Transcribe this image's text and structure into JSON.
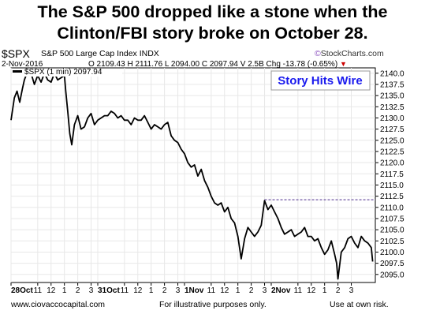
{
  "header": {
    "title_line1": "The S&P 500 dropped like a stone when the",
    "title_line2": "Clinton/FBI story broke on October 28.",
    "ticker": "$SPX",
    "instrument": "S&P 500 Large Cap Index INDX",
    "credit_icon": "©",
    "credit": "StockCharts.com",
    "date": "2-Nov-2016",
    "ohlc": "O 2109.43  H 2111.76  L 2094.00  C 2097.94  V 2.5B  Chg -13.78 (-0.65%)",
    "chg_arrow": "▼"
  },
  "footer": {
    "site": "www.ciovaccocapital.com",
    "disclaimer": "For illustrative purposes only.",
    "risk": "Use at own risk."
  },
  "colors": {
    "price_line": "#000000",
    "annotation_text": "#1a1aee",
    "annotation_border": "#999999",
    "reference_line": "#4b2a8a",
    "gridline": "#e8e8e8",
    "down": "#cc0000"
  },
  "chart_data": {
    "type": "line",
    "title": "The S&P 500 dropped like a stone when the Clinton/FBI story broke on October 28.",
    "legend": [
      "$SPX (1 min) 2097.94"
    ],
    "annotations": [
      {
        "text": "Story Hits Wire"
      }
    ],
    "reference_lines": [
      {
        "y": 2111.7,
        "style": "dashed",
        "x_start": "Nov 1 15:15"
      }
    ],
    "yticks": [
      2095.0,
      2097.5,
      2100.0,
      2102.5,
      2105.0,
      2107.5,
      2110.0,
      2112.5,
      2115.0,
      2117.5,
      2120.0,
      2122.5,
      2125.0,
      2127.5,
      2130.0,
      2132.5,
      2135.0,
      2137.5,
      2140.0
    ],
    "ylim": [
      2093.2,
      2141.2
    ],
    "xlim": [
      0,
      27.3
    ],
    "xlabel": "",
    "ylabel": "",
    "grid": true,
    "xticks": [
      {
        "x": 0,
        "label": "28Oct"
      },
      {
        "x": 2,
        "label": "11"
      },
      {
        "x": 3,
        "label": "12"
      },
      {
        "x": 4,
        "label": "1"
      },
      {
        "x": 5,
        "label": "2"
      },
      {
        "x": 6,
        "label": "3"
      },
      {
        "x": 6.5,
        "label": "31Oct"
      },
      {
        "x": 8.5,
        "label": "11"
      },
      {
        "x": 9.5,
        "label": "12"
      },
      {
        "x": 10.5,
        "label": "1"
      },
      {
        "x": 11.5,
        "label": "2"
      },
      {
        "x": 12.5,
        "label": "3"
      },
      {
        "x": 13,
        "label": "1Nov"
      },
      {
        "x": 15,
        "label": "11"
      },
      {
        "x": 16,
        "label": "12"
      },
      {
        "x": 17,
        "label": "1"
      },
      {
        "x": 18,
        "label": "2"
      },
      {
        "x": 19,
        "label": "3"
      },
      {
        "x": 19.5,
        "label": "2Nov"
      },
      {
        "x": 21.5,
        "label": "11"
      },
      {
        "x": 22.5,
        "label": "12"
      },
      {
        "x": 23.5,
        "label": "1"
      },
      {
        "x": 24.5,
        "label": "2"
      },
      {
        "x": 25.5,
        "label": "3"
      }
    ],
    "series": [
      {
        "name": "$SPX (1 min) 2097.94",
        "x": [
          0,
          0.25,
          0.45,
          0.65,
          0.85,
          1.0,
          1.25,
          1.5,
          1.75,
          2.0,
          2.25,
          2.5,
          2.75,
          3.0,
          3.25,
          3.5,
          3.75,
          4.0,
          4.1,
          4.25,
          4.4,
          4.55,
          4.75,
          5.0,
          5.25,
          5.5,
          5.75,
          6.0,
          6.25,
          6.5,
          6.75,
          7.0,
          7.25,
          7.5,
          7.75,
          8.0,
          8.25,
          8.5,
          8.75,
          9.0,
          9.25,
          9.5,
          9.75,
          10.0,
          10.25,
          10.5,
          10.75,
          11.0,
          11.25,
          11.5,
          11.75,
          12.0,
          12.25,
          12.5,
          12.75,
          13.0,
          13.25,
          13.5,
          13.75,
          14.0,
          14.25,
          14.5,
          14.75,
          15.0,
          15.25,
          15.5,
          15.75,
          16.0,
          16.25,
          16.5,
          16.75,
          17.0,
          17.15,
          17.25,
          17.5,
          17.75,
          18.0,
          18.25,
          18.5,
          18.75,
          19.0,
          19.25,
          19.5,
          19.75,
          20.0,
          20.25,
          20.5,
          20.75,
          21.0,
          21.25,
          21.5,
          21.75,
          22.0,
          22.25,
          22.5,
          22.75,
          23.0,
          23.25,
          23.5,
          23.75,
          24.0,
          24.25,
          24.4,
          24.5,
          24.75,
          25.0,
          25.25,
          25.5,
          25.75,
          26.0,
          26.25,
          26.5,
          26.75,
          27.0,
          27.1
        ],
        "y": [
          2129.5,
          2134.5,
          2136.0,
          2133.5,
          2136.5,
          2138.5,
          2140.5,
          2140.0,
          2137.5,
          2139.5,
          2138.0,
          2140.0,
          2138.5,
          2138.0,
          2140.0,
          2138.5,
          2139.0,
          2139.5,
          2136.0,
          2131.5,
          2126.5,
          2124.0,
          2128.5,
          2130.5,
          2127.5,
          2128.0,
          2130.0,
          2131.0,
          2128.5,
          2129.5,
          2130.0,
          2130.5,
          2130.5,
          2131.5,
          2131.0,
          2130.0,
          2130.5,
          2129.5,
          2129.5,
          2128.5,
          2130.0,
          2129.5,
          2129.5,
          2130.5,
          2129.0,
          2127.5,
          2128.5,
          2128.0,
          2127.5,
          2128.5,
          2129.0,
          2126.0,
          2125.0,
          2124.5,
          2123.0,
          2122.0,
          2120.0,
          2119.0,
          2119.5,
          2117.0,
          2118.5,
          2116.0,
          2114.5,
          2112.5,
          2111.0,
          2110.5,
          2111.0,
          2109.0,
          2110.0,
          2107.5,
          2106.5,
          2103.5,
          2100.5,
          2098.5,
          2103.0,
          2105.5,
          2104.5,
          2103.5,
          2104.5,
          2106.0,
          2111.5,
          2109.5,
          2110.5,
          2109.0,
          2107.5,
          2105.5,
          2104.0,
          2104.5,
          2105.0,
          2103.5,
          2104.0,
          2104.5,
          2105.5,
          2103.5,
          2103.5,
          2102.5,
          2103.0,
          2101.0,
          2099.5,
          2100.5,
          2102.5,
          2099.5,
          2097.5,
          2094.0,
          2100.0,
          2101.0,
          2103.0,
          2103.5,
          2102.0,
          2101.0,
          2103.5,
          2102.5,
          2102.0,
          2101.0,
          2097.9
        ]
      }
    ]
  }
}
